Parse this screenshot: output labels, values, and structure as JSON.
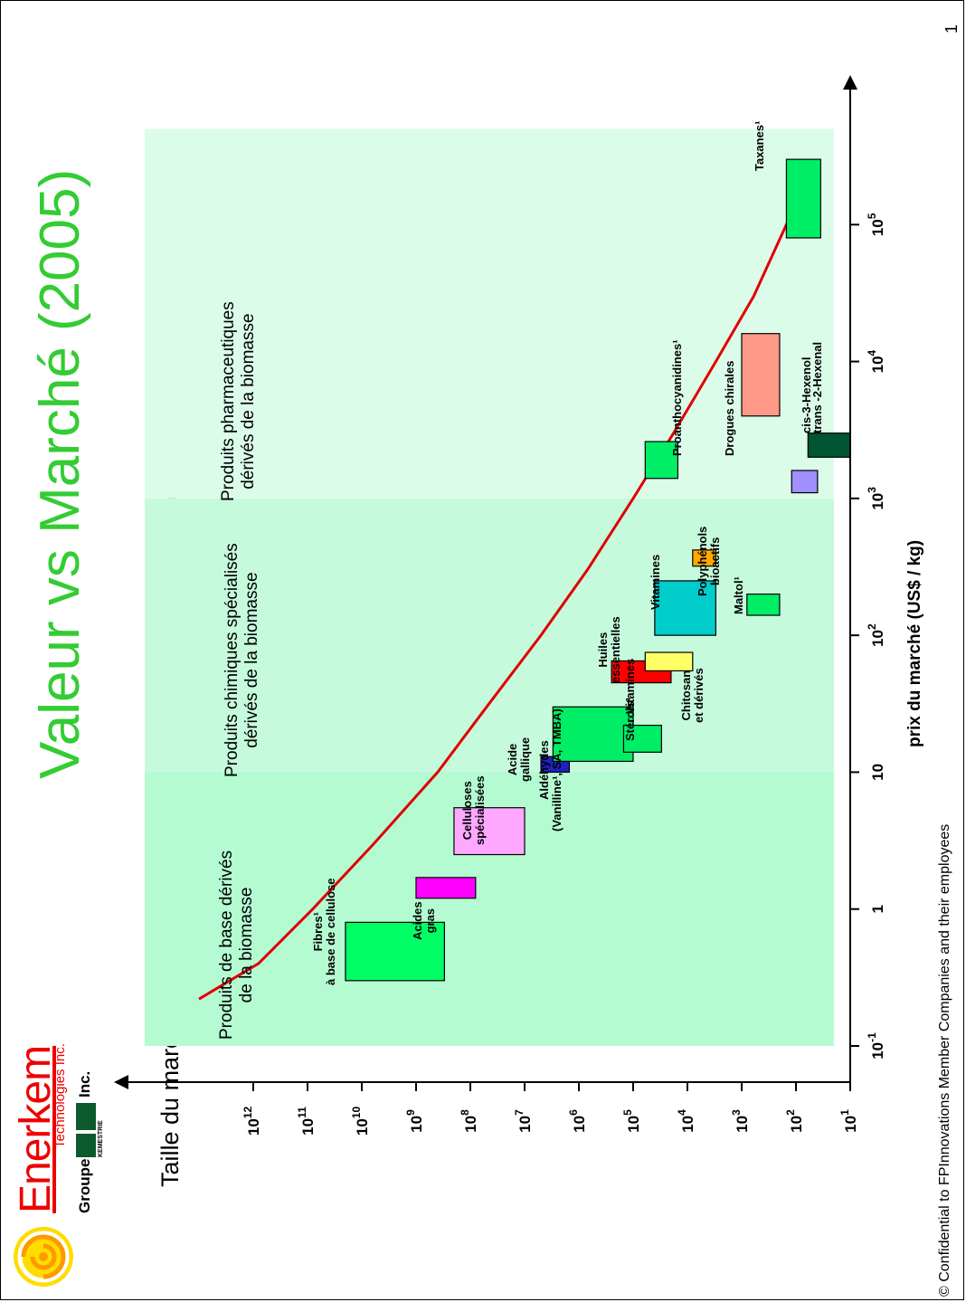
{
  "page_number": "1",
  "footer": "© Confidential to FPInnovations Member Companies and their employees",
  "logo": {
    "brand": "Enerkem",
    "brand_sub": "Technologies Inc.",
    "group_prefix": "Groupe",
    "group_mark": "KEMESTRIE",
    "group_suffix": "Inc."
  },
  "title": "Valeur vs Marché (2005)",
  "subtitle": "Taille du marché / prix des produits secondaires dérivés de la biomasse",
  "colors": {
    "title": "#33cc33",
    "curve": "#e00000",
    "band": "#a8f5c8"
  },
  "chart_data": {
    "type": "scatter",
    "x_axis": {
      "scale": "log",
      "range": [
        0.1,
        1000000
      ],
      "label": "prix du marché (US$ / kg)",
      "ticks": [
        {
          "b": "10",
          "e": "-1"
        },
        {
          "b": "1",
          "e": ""
        },
        {
          "b": "10",
          "e": ""
        },
        {
          "b": "10",
          "e": "2"
        },
        {
          "b": "10",
          "e": "3"
        },
        {
          "b": "10",
          "e": "4"
        },
        {
          "b": "10",
          "e": "5"
        }
      ]
    },
    "y_axis": {
      "scale": "log",
      "range": [
        10,
        10000000000000
      ],
      "label": "",
      "ticks": [
        {
          "b": "10",
          "e": "12"
        },
        {
          "b": "10",
          "e": "11"
        },
        {
          "b": "10",
          "e": "10"
        },
        {
          "b": "10",
          "e": "9"
        },
        {
          "b": "10",
          "e": "8"
        },
        {
          "b": "10",
          "e": "7"
        },
        {
          "b": "10",
          "e": "6"
        },
        {
          "b": "10",
          "e": "5"
        },
        {
          "b": "10",
          "e": "4"
        },
        {
          "b": "10",
          "e": "3"
        },
        {
          "b": "10",
          "e": "2"
        },
        {
          "b": "10",
          "e": "1"
        }
      ]
    },
    "regions": [
      {
        "label": "Produits de base dérivés\nde la biomasse",
        "x_range": [
          0.1,
          10
        ],
        "color": "#b4fbd2"
      },
      {
        "label": "Produits chimiques spécialisés\ndérivés de la biomasse",
        "x_range": [
          10,
          1000
        ],
        "color": "#c6fadc"
      },
      {
        "label": "Produits pharmaceutiques\ndérivés de la biomasse",
        "x_range": [
          1000,
          500000
        ],
        "color": "#dcfcea"
      }
    ],
    "trend_curve": [
      [
        0.22,
        10000000000000
      ],
      [
        0.4,
        800000000000
      ],
      [
        1,
        80000000000
      ],
      [
        3,
        6000000000
      ],
      [
        10,
        400000000
      ],
      [
        30,
        50000000
      ],
      [
        100,
        5000000
      ],
      [
        300,
        700000
      ],
      [
        1000,
        100000
      ],
      [
        3000,
        18000
      ],
      [
        10000,
        3000
      ],
      [
        30000,
        600
      ],
      [
        100000,
        150
      ],
      [
        300000,
        45
      ]
    ],
    "products": [
      {
        "label": "Fibres¹\nà base de cellulose",
        "x_range": [
          0.3,
          0.8
        ],
        "y_range": [
          300000000,
          20000000000
        ],
        "color": "#00ff66",
        "label_pos": "left"
      },
      {
        "label": "Acides\ngras",
        "x_range": [
          1.2,
          1.7
        ],
        "y_range": [
          80000000,
          1000000000
        ],
        "color": "#ff00ff",
        "label_pos": "left"
      },
      {
        "label": "Celluloses\nspécialisées",
        "x_range": [
          2.5,
          5.5
        ],
        "y_range": [
          10000000,
          200000000
        ],
        "color": "#ffa8ff",
        "label_pos": "left"
      },
      {
        "label": "Acide\ngallique",
        "x_range": [
          10,
          13
        ],
        "y_range": [
          1500000,
          5000000
        ],
        "color": "#2020c0",
        "label_pos": "left"
      },
      {
        "label": "Aldéhydes\n(Vanilline¹, SA, TMBA)",
        "x_range": [
          12,
          30
        ],
        "y_range": [
          100000,
          3000000
        ],
        "color": "#00ee66",
        "label_pos": "left"
      },
      {
        "label": "Stérols¹",
        "x_range": [
          14,
          22
        ],
        "y_range": [
          30000,
          150000
        ],
        "color": "#00ee66",
        "label_pos": "right"
      },
      {
        "label": "Huiles\nessentielles",
        "x_range": [
          45,
          65
        ],
        "y_range": [
          20000,
          250000
        ],
        "color": "#ff0000",
        "label_pos": "left"
      },
      {
        "label": "Vitamines",
        "x_range": [
          55,
          75
        ],
        "y_range": [
          8000,
          60000
        ],
        "color": "#ffff66",
        "label_pos": "left"
      },
      {
        "label": "Chitosan\net dérivés",
        "x_range": [
          55,
          75
        ],
        "y_range": [
          8000,
          60000
        ],
        "color": "#ffff66",
        "label_pos": "right"
      },
      {
        "label": "Vitamines",
        "x_range": [
          100,
          250
        ],
        "y_range": [
          3000,
          40000
        ],
        "color": "#00cccc",
        "label_pos": "left"
      },
      {
        "label": "Polyphénols\nbioactifs",
        "x_range": [
          320,
          420
        ],
        "y_range": [
          3000,
          8000
        ],
        "color": "#ffaa00",
        "label_pos": "right"
      },
      {
        "label": "Maltol¹",
        "x_range": [
          140,
          200
        ],
        "y_range": [
          200,
          800
        ],
        "color": "#00ee66",
        "label_pos": "right"
      },
      {
        "label": "Proanthocyanidines¹",
        "x_range": [
          1400,
          2600
        ],
        "y_range": [
          15000,
          60000
        ],
        "color": "#00ee66",
        "label_pos": "left"
      },
      {
        "label": "Drogues chirales",
        "x_range": [
          4000,
          16000
        ],
        "y_range": [
          200,
          1000
        ],
        "color": "#ff9a88",
        "label_pos": "left"
      },
      {
        "label": "cis-3-Hexenol",
        "x_range": [
          1100,
          1600
        ],
        "y_range": [
          40,
          120
        ],
        "color": "#9f8fff",
        "label_pos": "right"
      },
      {
        "label": "trans -2-Hexenal",
        "x_range": [
          2000,
          3000
        ],
        "y_range": [
          10,
          60
        ],
        "color": "#005533",
        "label_pos": "right"
      },
      {
        "label": "Taxanes¹",
        "x_range": [
          80000,
          300000
        ],
        "y_range": [
          35,
          150
        ],
        "color": "#00ee66",
        "label_pos": "left"
      }
    ]
  }
}
